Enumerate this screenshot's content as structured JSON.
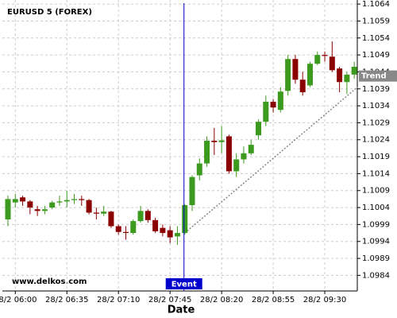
{
  "chart_data": {
    "type": "candlestick",
    "title": "EURUSD 5 (FOREX)",
    "x_label": "Date",
    "watermark": "www.delkos.com",
    "categories": [
      null,
      "28/2 06:00",
      null,
      null,
      null,
      null,
      null,
      null,
      "28/2 06:35",
      null,
      null,
      null,
      null,
      null,
      null,
      "28/2 07:10",
      null,
      null,
      null,
      null,
      null,
      null,
      "28/2 07:45",
      null,
      null,
      null,
      null,
      null,
      null,
      "28/2 08:20",
      null,
      null,
      null,
      null,
      null,
      null,
      "28/2 08:55",
      null,
      null,
      null,
      null,
      null,
      null,
      "28/2 09:30",
      null,
      null,
      null,
      null
    ],
    "open": [
      1.10005,
      1.10055,
      1.1007,
      1.10058,
      1.10035,
      1.1003,
      1.1004,
      1.10055,
      1.10058,
      1.10062,
      1.10065,
      1.10062,
      1.10025,
      1.10022,
      1.10028,
      1.09985,
      1.09968,
      1.09965,
      1.1,
      1.1003,
      1.10003,
      1.0998,
      1.09973,
      1.09955,
      1.09965,
      1.10047,
      1.10135,
      1.1017,
      1.10237,
      1.10233,
      1.1025,
      1.10147,
      1.10182,
      1.102,
      1.10253,
      1.10293,
      1.10352,
      1.10328,
      1.10384,
      1.10478,
      1.10417,
      1.104,
      1.10464,
      1.1049,
      1.10485,
      1.1045,
      1.1041,
      1.10432
    ],
    "high": [
      1.10075,
      1.1008,
      1.10075,
      1.10062,
      1.10045,
      1.10045,
      1.1006,
      1.10075,
      1.1009,
      1.1008,
      1.10075,
      1.10065,
      1.1004,
      1.10045,
      1.1003,
      1.0999,
      1.09985,
      1.10005,
      1.10045,
      1.10035,
      1.1001,
      1.0999,
      1.09985,
      1.09985,
      1.1005,
      1.10135,
      1.10185,
      1.1025,
      1.10275,
      1.1028,
      1.10255,
      1.102,
      1.1022,
      1.1024,
      1.103,
      1.1037,
      1.1036,
      1.10395,
      1.1049,
      1.1049,
      1.1044,
      1.1047,
      1.105,
      1.105,
      1.1053,
      1.10455,
      1.1044,
      1.1047
    ],
    "low": [
      1.09985,
      1.1004,
      1.10045,
      1.1002,
      1.10015,
      1.1002,
      1.10035,
      1.10045,
      1.1004,
      1.1005,
      1.10045,
      1.1002,
      1.10005,
      1.10015,
      1.0998,
      1.0996,
      1.09945,
      1.0996,
      1.09995,
      1.09995,
      1.09965,
      1.09955,
      1.09935,
      1.0993,
      1.0996,
      1.1003,
      1.1012,
      1.1016,
      1.10195,
      1.102,
      1.1014,
      1.1013,
      1.1017,
      1.10195,
      1.1024,
      1.1028,
      1.1032,
      1.1032,
      1.1037,
      1.10405,
      1.1037,
      1.10395,
      1.1046,
      1.1047,
      1.1044,
      1.1038,
      1.10375,
      1.1042
    ],
    "close": [
      1.10065,
      1.10065,
      1.10058,
      1.1004,
      1.1003,
      1.10035,
      1.10055,
      1.10058,
      1.10062,
      1.10065,
      1.10062,
      1.10025,
      1.10022,
      1.10028,
      1.09985,
      1.09968,
      1.09965,
      1.1,
      1.1003,
      1.10003,
      1.0997,
      1.09965,
      1.09952,
      1.09965,
      1.10047,
      1.1013,
      1.1017,
      1.10237,
      1.10233,
      1.10238,
      1.10147,
      1.10182,
      1.102,
      1.10225,
      1.10293,
      1.10352,
      1.10335,
      1.10382,
      1.10478,
      1.10417,
      1.1038,
      1.10464,
      1.1049,
      1.10487,
      1.10445,
      1.1041,
      1.10432,
      1.10455
    ],
    "up_color": "#3c9a1e",
    "down_color": "#8b0000",
    "ylim": [
      1.09794,
      1.10652
    ],
    "yticks": [
      1.0984,
      1.0989,
      1.0994,
      1.0999,
      1.1004,
      1.1009,
      1.1014,
      1.1019,
      1.1024,
      1.1029,
      1.1034,
      1.1039,
      1.1044,
      1.1049,
      1.1054,
      1.1059,
      1.1064
    ],
    "grid": true,
    "event": {
      "label": "Event",
      "index": 24,
      "color": "#0000cc"
    },
    "trend": {
      "label": "Trend",
      "start_index": 24,
      "end_index": 47,
      "values": [
        1.09965,
        1.10395
      ],
      "color": "#888888"
    }
  }
}
